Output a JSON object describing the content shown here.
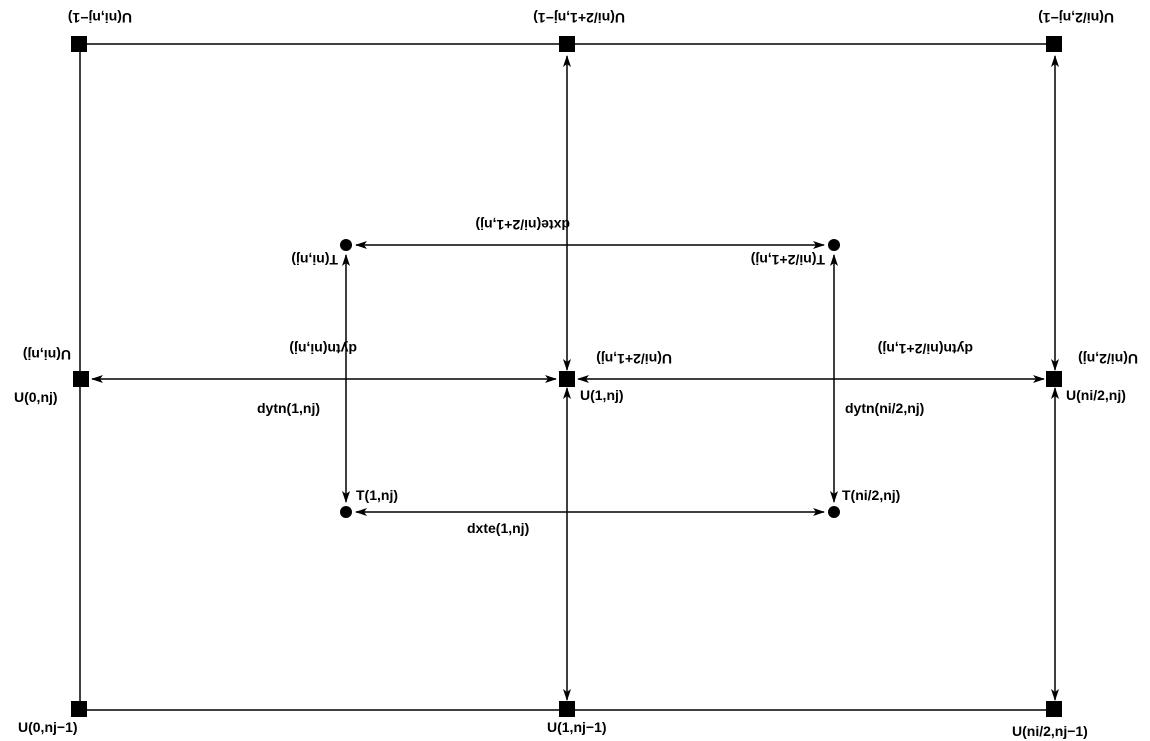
{
  "u_nodes": {
    "top_left": "U(ni,nj−1)",
    "top_mid": "U(ni/2+1,nj−1)",
    "top_right": "U(ni/2,nj−1)",
    "mid_left_top": "U(ni,nj)",
    "mid_left_bottom": "U(0,nj)",
    "center_top": "U(ni/2+1,nj)",
    "center_bottom": "U(1,nj)",
    "mid_right_top": "U(ni/2,nj)",
    "mid_right_bottom": "U(ni/2,nj)",
    "bottom_left": "U(0,nj−1)",
    "bottom_mid": "U(1,nj−1)",
    "bottom_right": "U(ni/2,nj−1)"
  },
  "t_nodes": {
    "upper_left": "T(ni,nj)",
    "upper_right": "T(ni/2+1,nj)",
    "lower_left": "T(1,nj)",
    "lower_right": "T(ni/2,nj)"
  },
  "spacings": {
    "dxte_top": "dxte(ni/2+1,nj)",
    "dxte_bottom": "dxte(1,nj)",
    "dytn_left_top": "dytn(ni,nj)",
    "dytn_left_bottom": "dytn(1,nj)",
    "dytn_right_top": "dytn(ni/2+1,nj)",
    "dytn_right_bottom": "dytn(ni/2,nj)"
  }
}
